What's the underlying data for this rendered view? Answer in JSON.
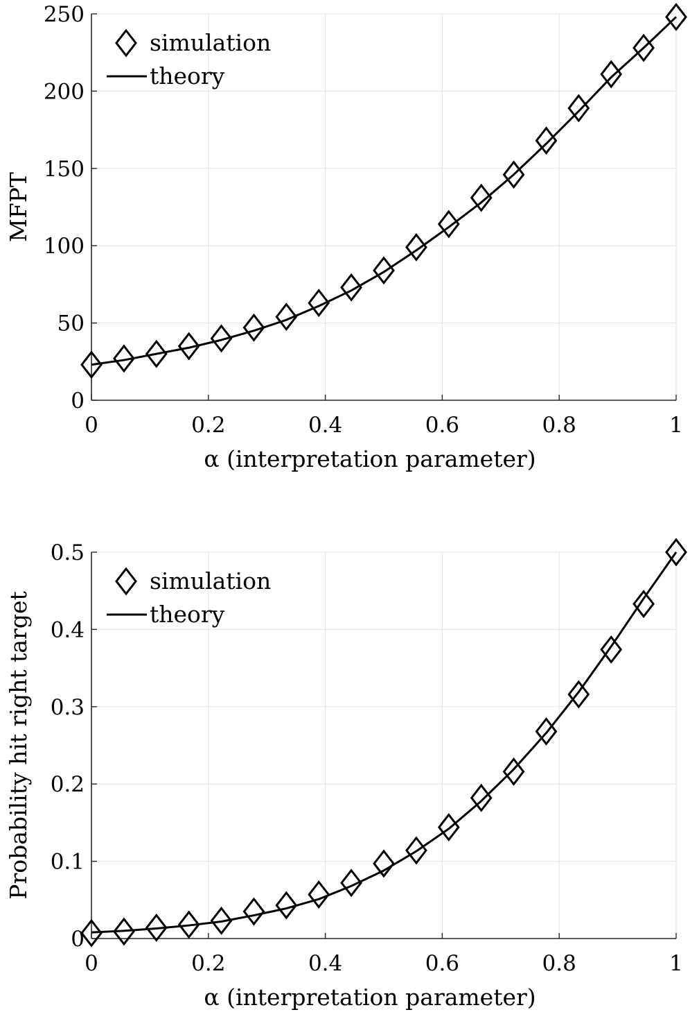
{
  "chart_data": [
    {
      "type": "line",
      "xlabel": "α (interpretation parameter)",
      "ylabel": "MFPT",
      "xlim": [
        0,
        1
      ],
      "ylim": [
        0,
        250
      ],
      "xticks": [
        0,
        0.2,
        0.4,
        0.6,
        0.8,
        1
      ],
      "xtick_labels": [
        "0",
        "0.2",
        "0.4",
        "0.6",
        "0.8",
        "1"
      ],
      "yticks": [
        0,
        50,
        100,
        150,
        200,
        250
      ],
      "ytick_labels": [
        "0",
        "50",
        "100",
        "150",
        "200",
        "250"
      ],
      "grid": true,
      "legend_position": "top-left",
      "series": [
        {
          "name": "simulation",
          "style": "diamond markers",
          "x": [
            0,
            0.0556,
            0.1111,
            0.1667,
            0.2222,
            0.2778,
            0.3333,
            0.3889,
            0.4444,
            0.5,
            0.5556,
            0.6111,
            0.6667,
            0.7222,
            0.7778,
            0.8333,
            0.8889,
            0.9444,
            1
          ],
          "y": [
            23,
            27,
            30,
            35,
            40,
            47,
            54,
            63,
            73,
            84,
            99,
            114,
            131,
            146,
            168,
            189,
            211,
            228,
            248
          ]
        },
        {
          "name": "theory",
          "style": "solid line",
          "x": [
            0,
            0.0556,
            0.1111,
            0.1667,
            0.2222,
            0.2778,
            0.3333,
            0.3889,
            0.4444,
            0.5,
            0.5556,
            0.6111,
            0.6667,
            0.7222,
            0.7778,
            0.8333,
            0.8889,
            0.9444,
            1
          ],
          "y": [
            23,
            26,
            30,
            34,
            39,
            45,
            52,
            61,
            71,
            83,
            97,
            112,
            128,
            146,
            166,
            187,
            209,
            228,
            248
          ]
        }
      ]
    },
    {
      "type": "line",
      "xlabel": "α (interpretation parameter)",
      "ylabel": "Probability hit right target",
      "xlim": [
        0,
        1
      ],
      "ylim": [
        0,
        0.5
      ],
      "xticks": [
        0,
        0.2,
        0.4,
        0.6,
        0.8,
        1
      ],
      "xtick_labels": [
        "0",
        "0.2",
        "0.4",
        "0.6",
        "0.8",
        "1"
      ],
      "yticks": [
        0,
        0.1,
        0.2,
        0.3,
        0.4,
        0.5
      ],
      "ytick_labels": [
        "0",
        "0.1",
        "0.2",
        "0.3",
        "0.4",
        "0.5"
      ],
      "grid": true,
      "legend_position": "top-left",
      "series": [
        {
          "name": "simulation",
          "style": "diamond markers",
          "x": [
            0,
            0.0556,
            0.1111,
            0.1667,
            0.2222,
            0.2778,
            0.3333,
            0.3889,
            0.4444,
            0.5,
            0.5556,
            0.6111,
            0.6667,
            0.7222,
            0.7778,
            0.8333,
            0.8889,
            0.9444,
            1
          ],
          "y": [
            0.007,
            0.009,
            0.014,
            0.018,
            0.023,
            0.035,
            0.043,
            0.057,
            0.072,
            0.097,
            0.114,
            0.144,
            0.182,
            0.216,
            0.268,
            0.316,
            0.374,
            0.433,
            0.5
          ]
        },
        {
          "name": "theory",
          "style": "solid line",
          "x": [
            0,
            0.0556,
            0.1111,
            0.1667,
            0.2222,
            0.2778,
            0.3333,
            0.3889,
            0.4444,
            0.5,
            0.5556,
            0.6111,
            0.6667,
            0.7222,
            0.7778,
            0.8333,
            0.8889,
            0.9444,
            1
          ],
          "y": [
            0.008,
            0.01,
            0.013,
            0.017,
            0.022,
            0.03,
            0.039,
            0.051,
            0.068,
            0.088,
            0.113,
            0.142,
            0.178,
            0.219,
            0.266,
            0.319,
            0.378,
            0.44,
            0.5
          ]
        }
      ]
    }
  ]
}
